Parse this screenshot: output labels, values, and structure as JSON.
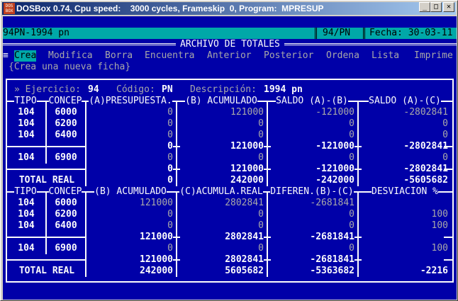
{
  "window": {
    "title": "DOSBox 0.74, Cpu speed:    3000 cycles, Frameskip  0, Program:  MPRESUP",
    "icon": "dosbox-icon",
    "buttons": [
      "minimize",
      "maximize",
      "close"
    ]
  },
  "status": {
    "left": "94PN-1994 pn",
    "code": "94/PN",
    "date": "Fecha: 30-03-11"
  },
  "screen_title": "ARCHIVO DE TOTALES",
  "menu": {
    "items": [
      "Crea",
      "Modifica",
      "Borra",
      "Encuentra",
      "Anterior",
      "Posterior",
      "Ordena",
      "Lista",
      "Imprime"
    ],
    "selected": 0,
    "hint": "{Crea una nueva ficha}"
  },
  "info": {
    "ejercicio_label": "» Ejercicio:",
    "ejercicio": "94",
    "codigo_label": "Código:",
    "codigo": "PN",
    "descripcion_label": "Descripción:",
    "descripcion": "1994 pn"
  },
  "table1": {
    "headers": [
      "TIPO",
      "CONCEP",
      "(A)PRESUPUESTA.",
      "(B) ACUMULADO",
      "SALDO (A)-(B)",
      "SALDO (A)-(C)"
    ],
    "rows": [
      {
        "tipo": "104",
        "concep": "6000",
        "v": [
          "0",
          "121000",
          "-121000",
          "-2802841"
        ],
        "kind": "data"
      },
      {
        "tipo": "104",
        "concep": "6200",
        "v": [
          "0",
          "0",
          "0",
          "0"
        ],
        "kind": "data"
      },
      {
        "tipo": "104",
        "concep": "6400",
        "v": [
          "0",
          "0",
          "0",
          "0"
        ],
        "kind": "data"
      },
      {
        "tipo": "",
        "concep": "",
        "v": [
          "0",
          "121000",
          "-121000",
          "-2802841"
        ],
        "kind": "subtotal"
      },
      {
        "tipo": "104",
        "concep": "6900",
        "v": [
          "0",
          "0",
          "0",
          "0"
        ],
        "kind": "data"
      },
      {
        "tipo": "",
        "concep": "",
        "v": [
          "0",
          "121000",
          "-121000",
          "-2802841"
        ],
        "kind": "subtotal"
      },
      {
        "tipo": "TOTAL REAL",
        "concep": "",
        "v": [
          "0",
          "242000",
          "-242000",
          "-5605682"
        ],
        "kind": "total"
      }
    ]
  },
  "table2": {
    "headers": [
      "TIPO",
      "CONCEP",
      "(B) ACUMULADO",
      "(C)ACUMULA.REAL",
      "DIFEREN.(B)-(C)",
      "DESVIACION %"
    ],
    "rows": [
      {
        "tipo": "104",
        "concep": "6000",
        "v": [
          "121000",
          "2802841",
          "-2681841",
          ""
        ],
        "kind": "data"
      },
      {
        "tipo": "104",
        "concep": "6200",
        "v": [
          "0",
          "0",
          "0",
          "100"
        ],
        "kind": "data"
      },
      {
        "tipo": "104",
        "concep": "6400",
        "v": [
          "0",
          "0",
          "0",
          "100"
        ],
        "kind": "data"
      },
      {
        "tipo": "",
        "concep": "",
        "v": [
          "121000",
          "2802841",
          "-2681841",
          ""
        ],
        "kind": "subtotal"
      },
      {
        "tipo": "104",
        "concep": "6900",
        "v": [
          "0",
          "0",
          "0",
          "100"
        ],
        "kind": "data"
      },
      {
        "tipo": "",
        "concep": "",
        "v": [
          "121000",
          "2802841",
          "-2681841",
          ""
        ],
        "kind": "subtotal"
      },
      {
        "tipo": "TOTAL REAL",
        "concep": "",
        "v": [
          "242000",
          "5605682",
          "-5363682",
          "-2216"
        ],
        "kind": "total"
      }
    ]
  },
  "colors": {
    "background": "#0000a8",
    "status_bar": "#00a8a8",
    "text": "#fcfcfc",
    "dim_text": "#a8a8a8"
  }
}
